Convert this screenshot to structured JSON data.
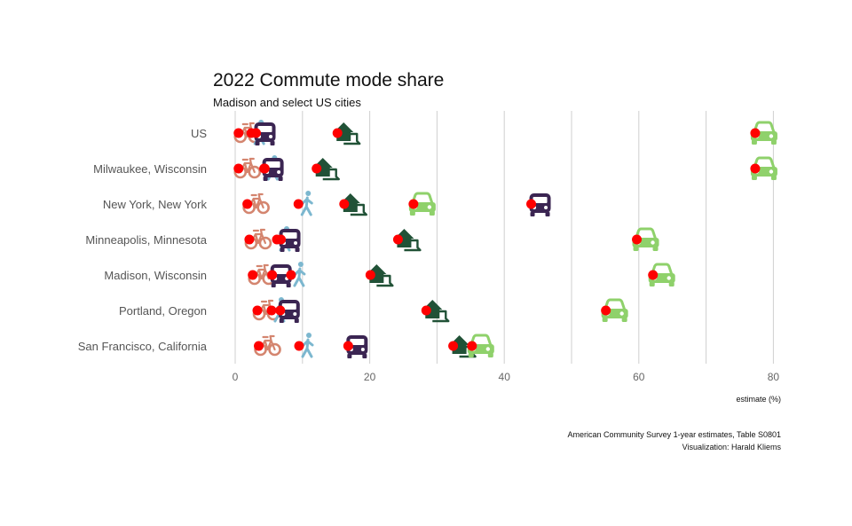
{
  "chart_data": {
    "type": "scatter",
    "title": "2022 Commute mode share",
    "subtitle": "Madison and select US cities",
    "xlabel": "estimate (%)",
    "xlim": [
      -2,
      82
    ],
    "xticks": [
      0,
      20,
      40,
      60,
      80
    ],
    "grid": "vertical",
    "caption": [
      "American Community Survey 1-year estimates, Table S0801",
      "Visualization: Harald Kliems"
    ],
    "categories": [
      "US",
      "Milwaukee, Wisconsin",
      "New York, New York",
      "Minneapolis, Minnesota",
      "Madison, Wisconsin",
      "Portland, Oregon",
      "San Francisco, California"
    ],
    "series": [
      {
        "icon": "bicycle-icon",
        "color": "#d4856f",
        "values": [
          0.5,
          0.5,
          1.8,
          2.1,
          2.6,
          3.3,
          3.5
        ]
      },
      {
        "icon": "walking-icon",
        "color": "#7cb7cf",
        "values": [
          2.4,
          4.4,
          9.4,
          6.2,
          8.3,
          5.4,
          9.5
        ]
      },
      {
        "icon": "bus-icon",
        "color": "#3b2552",
        "values": [
          3.1,
          4.3,
          44.0,
          6.8,
          5.5,
          6.7,
          16.8
        ]
      },
      {
        "icon": "home-office-icon",
        "color": "#215237",
        "values": [
          15.2,
          12.1,
          16.2,
          24.2,
          20.1,
          28.4,
          32.4
        ]
      },
      {
        "icon": "car-icon",
        "color": "#8fd16b",
        "values": [
          77.3,
          77.3,
          26.5,
          59.7,
          62.1,
          55.1,
          35.2
        ]
      }
    ]
  }
}
